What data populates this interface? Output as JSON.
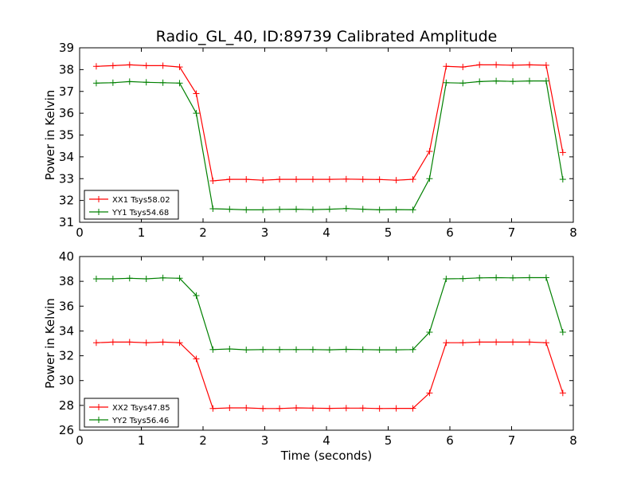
{
  "chart_data": [
    {
      "type": "line",
      "title": "Radio_GL_40, ID:89739 Calibrated Amplitude",
      "xlabel": "",
      "ylabel": "Power in Kelvin",
      "xlim": [
        0,
        8
      ],
      "ylim": [
        31,
        39
      ],
      "xticks": [
        "0",
        "1",
        "2",
        "3",
        "4",
        "5",
        "6",
        "7",
        "8"
      ],
      "yticks": [
        "31",
        "32",
        "33",
        "34",
        "35",
        "36",
        "37",
        "38",
        "39"
      ],
      "grid": false,
      "legend_position": "lower-left",
      "x": [
        0.27,
        0.54,
        0.81,
        1.08,
        1.35,
        1.62,
        1.89,
        2.16,
        2.43,
        2.7,
        2.97,
        3.24,
        3.51,
        3.78,
        4.05,
        4.32,
        4.59,
        4.86,
        5.13,
        5.4,
        5.67,
        5.94,
        6.21,
        6.48,
        6.75,
        7.02,
        7.29,
        7.56,
        7.83
      ],
      "series": [
        {
          "name": "XX1 Tsys58.02",
          "color": "#ff0000",
          "values": [
            38.15,
            38.18,
            38.22,
            38.18,
            38.18,
            38.12,
            36.9,
            32.9,
            32.97,
            32.97,
            32.93,
            32.97,
            32.97,
            32.97,
            32.97,
            32.98,
            32.97,
            32.96,
            32.93,
            32.97,
            34.25,
            38.15,
            38.12,
            38.22,
            38.22,
            38.2,
            38.22,
            38.2,
            34.2
          ]
        },
        {
          "name": "YY1 Tsys54.68",
          "color": "#008000",
          "values": [
            37.38,
            37.4,
            37.45,
            37.42,
            37.4,
            37.38,
            36.0,
            31.62,
            31.6,
            31.57,
            31.57,
            31.59,
            31.6,
            31.58,
            31.6,
            31.63,
            31.6,
            31.57,
            31.58,
            31.57,
            33.0,
            37.4,
            37.38,
            37.45,
            37.48,
            37.46,
            37.48,
            37.48,
            32.97
          ]
        }
      ]
    },
    {
      "type": "line",
      "title": "",
      "xlabel": "Time (seconds)",
      "ylabel": "Power in Kelvin",
      "xlim": [
        0,
        8
      ],
      "ylim": [
        26,
        40
      ],
      "xticks": [
        "0",
        "1",
        "2",
        "3",
        "4",
        "5",
        "6",
        "7",
        "8"
      ],
      "yticks": [
        "26",
        "28",
        "30",
        "32",
        "34",
        "36",
        "38",
        "40"
      ],
      "grid": false,
      "legend_position": "lower-left",
      "x": [
        0.27,
        0.54,
        0.81,
        1.08,
        1.35,
        1.62,
        1.89,
        2.16,
        2.43,
        2.7,
        2.97,
        3.24,
        3.51,
        3.78,
        4.05,
        4.32,
        4.59,
        4.86,
        5.13,
        5.4,
        5.67,
        5.94,
        6.21,
        6.48,
        6.75,
        7.02,
        7.29,
        7.56,
        7.83
      ],
      "series": [
        {
          "name": "XX2 Tsys47.85",
          "color": "#ff0000",
          "values": [
            33.05,
            33.1,
            33.1,
            33.05,
            33.1,
            33.05,
            31.75,
            27.75,
            27.8,
            27.8,
            27.75,
            27.75,
            27.8,
            27.78,
            27.76,
            27.78,
            27.78,
            27.75,
            27.76,
            27.76,
            29.0,
            33.05,
            33.05,
            33.1,
            33.1,
            33.1,
            33.1,
            33.05,
            29.0
          ]
        },
        {
          "name": "YY2 Tsys56.46",
          "color": "#008000",
          "values": [
            38.2,
            38.2,
            38.25,
            38.2,
            38.28,
            38.25,
            36.85,
            32.5,
            32.55,
            32.48,
            32.5,
            32.5,
            32.5,
            32.5,
            32.48,
            32.52,
            32.5,
            32.48,
            32.48,
            32.5,
            33.9,
            38.2,
            38.22,
            38.28,
            38.3,
            38.28,
            38.3,
            38.3,
            33.9
          ]
        }
      ]
    }
  ]
}
